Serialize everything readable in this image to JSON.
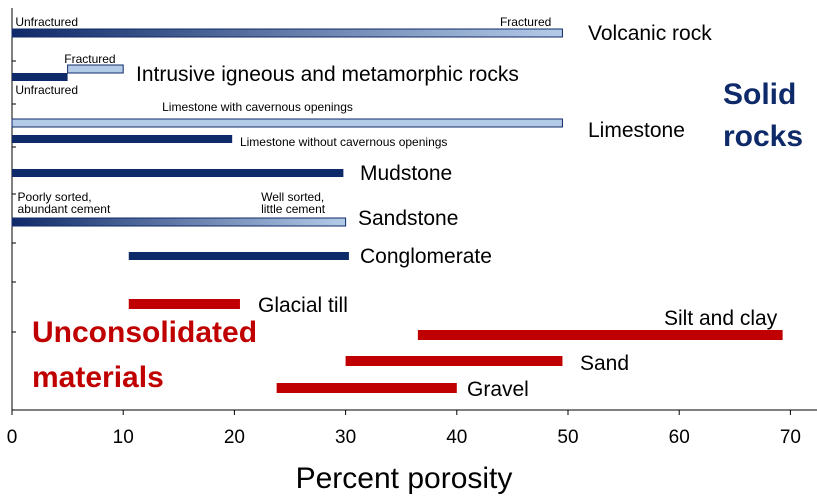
{
  "chart_data": {
    "type": "bar",
    "orientation": "horizontal-range",
    "xlabel": "Percent porosity",
    "xlim": [
      0,
      70
    ],
    "xticks": [
      "0",
      "10",
      "20",
      "30",
      "40",
      "50",
      "60",
      "70"
    ],
    "grid": false,
    "colors": {
      "solid_dark": "#0f2a68",
      "solid_light": "#b4cbe8",
      "unconsolidated": "#c00000"
    },
    "groups": [
      {
        "id": "solid",
        "lines": [
          "Solid",
          "rocks"
        ],
        "color": "#0f2a68"
      },
      {
        "id": "unconsolidated",
        "lines": [
          "Unconsolidated",
          "materials"
        ],
        "color": "#c00000"
      }
    ],
    "series": [
      {
        "name": "Volcanic rock",
        "group": "solid",
        "bars": [
          {
            "min": 0,
            "max": 49.5,
            "style": "gradient"
          }
        ],
        "notes": [
          {
            "text": "Unfractured",
            "x": 0.3,
            "anchor": "start"
          },
          {
            "text": "Fractured",
            "x": 48.5,
            "anchor": "end"
          }
        ]
      },
      {
        "name": "Intrusive igneous and metamorphic rocks",
        "group": "solid",
        "bars": [
          {
            "min": 5,
            "max": 10,
            "style": "light"
          },
          {
            "min": 0,
            "max": 5,
            "style": "dark"
          }
        ],
        "notes": [
          {
            "text": "Fractured",
            "x": 4.7,
            "anchor": "start"
          },
          {
            "text": "Unfractured",
            "x": 0.3,
            "anchor": "start"
          }
        ]
      },
      {
        "name": "Limestone",
        "group": "solid",
        "bars": [
          {
            "min": 0,
            "max": 49.5,
            "style": "light"
          },
          {
            "min": 0,
            "max": 19.8,
            "style": "dark"
          }
        ],
        "notes": [
          {
            "text": "Limestone with cavernous openings",
            "x": 13.5,
            "anchor": "start"
          },
          {
            "text": "Limestone without cavernous openings",
            "x": 20.5,
            "anchor": "start"
          }
        ]
      },
      {
        "name": "Mudstone",
        "group": "solid",
        "bars": [
          {
            "min": 0,
            "max": 29.8,
            "style": "dark"
          }
        ],
        "notes": []
      },
      {
        "name": "Sandstone",
        "group": "solid",
        "bars": [
          {
            "min": 0,
            "max": 30,
            "style": "gradient"
          }
        ],
        "notes": [
          {
            "text": "Poorly sorted,",
            "x": 0.5,
            "anchor": "start"
          },
          {
            "text": "abundant cement",
            "x": 0.5,
            "anchor": "start"
          },
          {
            "text": "Well sorted,",
            "x": 22.4,
            "anchor": "start"
          },
          {
            "text": "little cement",
            "x": 22.4,
            "anchor": "start"
          }
        ]
      },
      {
        "name": "Conglomerate",
        "group": "solid",
        "bars": [
          {
            "min": 10.5,
            "max": 30.3,
            "style": "dark"
          }
        ],
        "notes": []
      },
      {
        "name": "Glacial till",
        "group": "unconsolidated",
        "bars": [
          {
            "min": 10.5,
            "max": 20.5,
            "style": "red"
          }
        ],
        "notes": []
      },
      {
        "name": "Silt and clay",
        "group": "unconsolidated",
        "bars": [
          {
            "min": 36.5,
            "max": 69.3,
            "style": "red"
          }
        ],
        "notes": []
      },
      {
        "name": "Sand",
        "group": "unconsolidated",
        "bars": [
          {
            "min": 30,
            "max": 49.5,
            "style": "red"
          }
        ],
        "notes": []
      },
      {
        "name": "Gravel",
        "group": "unconsolidated",
        "bars": [
          {
            "min": 23.8,
            "max": 40,
            "style": "red"
          }
        ],
        "notes": []
      }
    ]
  }
}
